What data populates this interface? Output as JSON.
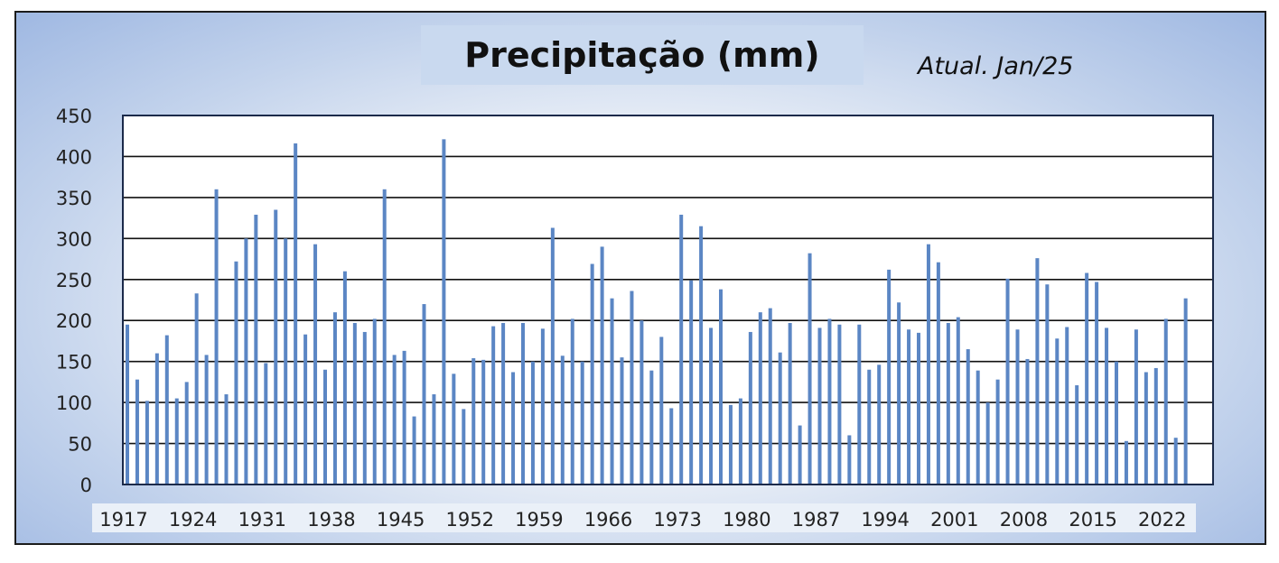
{
  "chart_data": {
    "type": "bar",
    "title": "Precipitação (mm)",
    "annotation": "Atual. Jan/25",
    "xlabel": "",
    "ylabel": "",
    "ylim": [
      0,
      450
    ],
    "yticks": [
      0,
      50,
      100,
      150,
      200,
      250,
      300,
      350,
      400,
      450
    ],
    "grid": true,
    "legend": "none",
    "bar_color": "#5b86c4",
    "x_tick_labels": [
      "1917",
      "1924",
      "1931",
      "1938",
      "1945",
      "1952",
      "1959",
      "1966",
      "1973",
      "1980",
      "1987",
      "1994",
      "2001",
      "2008",
      "2015",
      "2022"
    ],
    "years": [
      1917,
      1918,
      1919,
      1920,
      1921,
      1922,
      1923,
      1924,
      1925,
      1926,
      1927,
      1928,
      1929,
      1930,
      1931,
      1932,
      1933,
      1934,
      1935,
      1936,
      1937,
      1938,
      1939,
      1940,
      1941,
      1942,
      1943,
      1944,
      1945,
      1946,
      1947,
      1948,
      1949,
      1950,
      1951,
      1952,
      1953,
      1954,
      1955,
      1956,
      1957,
      1958,
      1959,
      1960,
      1961,
      1962,
      1963,
      1964,
      1965,
      1966,
      1967,
      1968,
      1969,
      1970,
      1971,
      1972,
      1973,
      1974,
      1975,
      1976,
      1977,
      1978,
      1979,
      1980,
      1981,
      1982,
      1983,
      1984,
      1985,
      1986,
      1987,
      1988,
      1989,
      1990,
      1991,
      1992,
      1993,
      1994,
      1995,
      1996,
      1997,
      1998,
      1999,
      2000,
      2001,
      2002,
      2003,
      2004,
      2005,
      2006,
      2007,
      2008,
      2009,
      2010,
      2011,
      2012,
      2013,
      2014,
      2015,
      2016,
      2017,
      2018,
      2019,
      2020,
      2021,
      2022,
      2023,
      2024
    ],
    "values": [
      195,
      128,
      102,
      160,
      182,
      105,
      125,
      233,
      158,
      360,
      110,
      272,
      300,
      329,
      148,
      335,
      300,
      416,
      183,
      293,
      140,
      210,
      260,
      197,
      186,
      202,
      360,
      158,
      163,
      83,
      220,
      110,
      421,
      135,
      92,
      154,
      152,
      193,
      197,
      137,
      197,
      150,
      190,
      313,
      157,
      202,
      150,
      269,
      290,
      227,
      155,
      236,
      200,
      139,
      180,
      93,
      329,
      249,
      315,
      191,
      238,
      97,
      105,
      186,
      210,
      215,
      161,
      197,
      72,
      282,
      191,
      202,
      195,
      60,
      195,
      140,
      146,
      262,
      222,
      189,
      185,
      293,
      271,
      197,
      204,
      165,
      139,
      100,
      128,
      251,
      189,
      153,
      276,
      244,
      178,
      192,
      121,
      258,
      247,
      191,
      150,
      53,
      189,
      137,
      142,
      202,
      57,
      227
    ]
  }
}
